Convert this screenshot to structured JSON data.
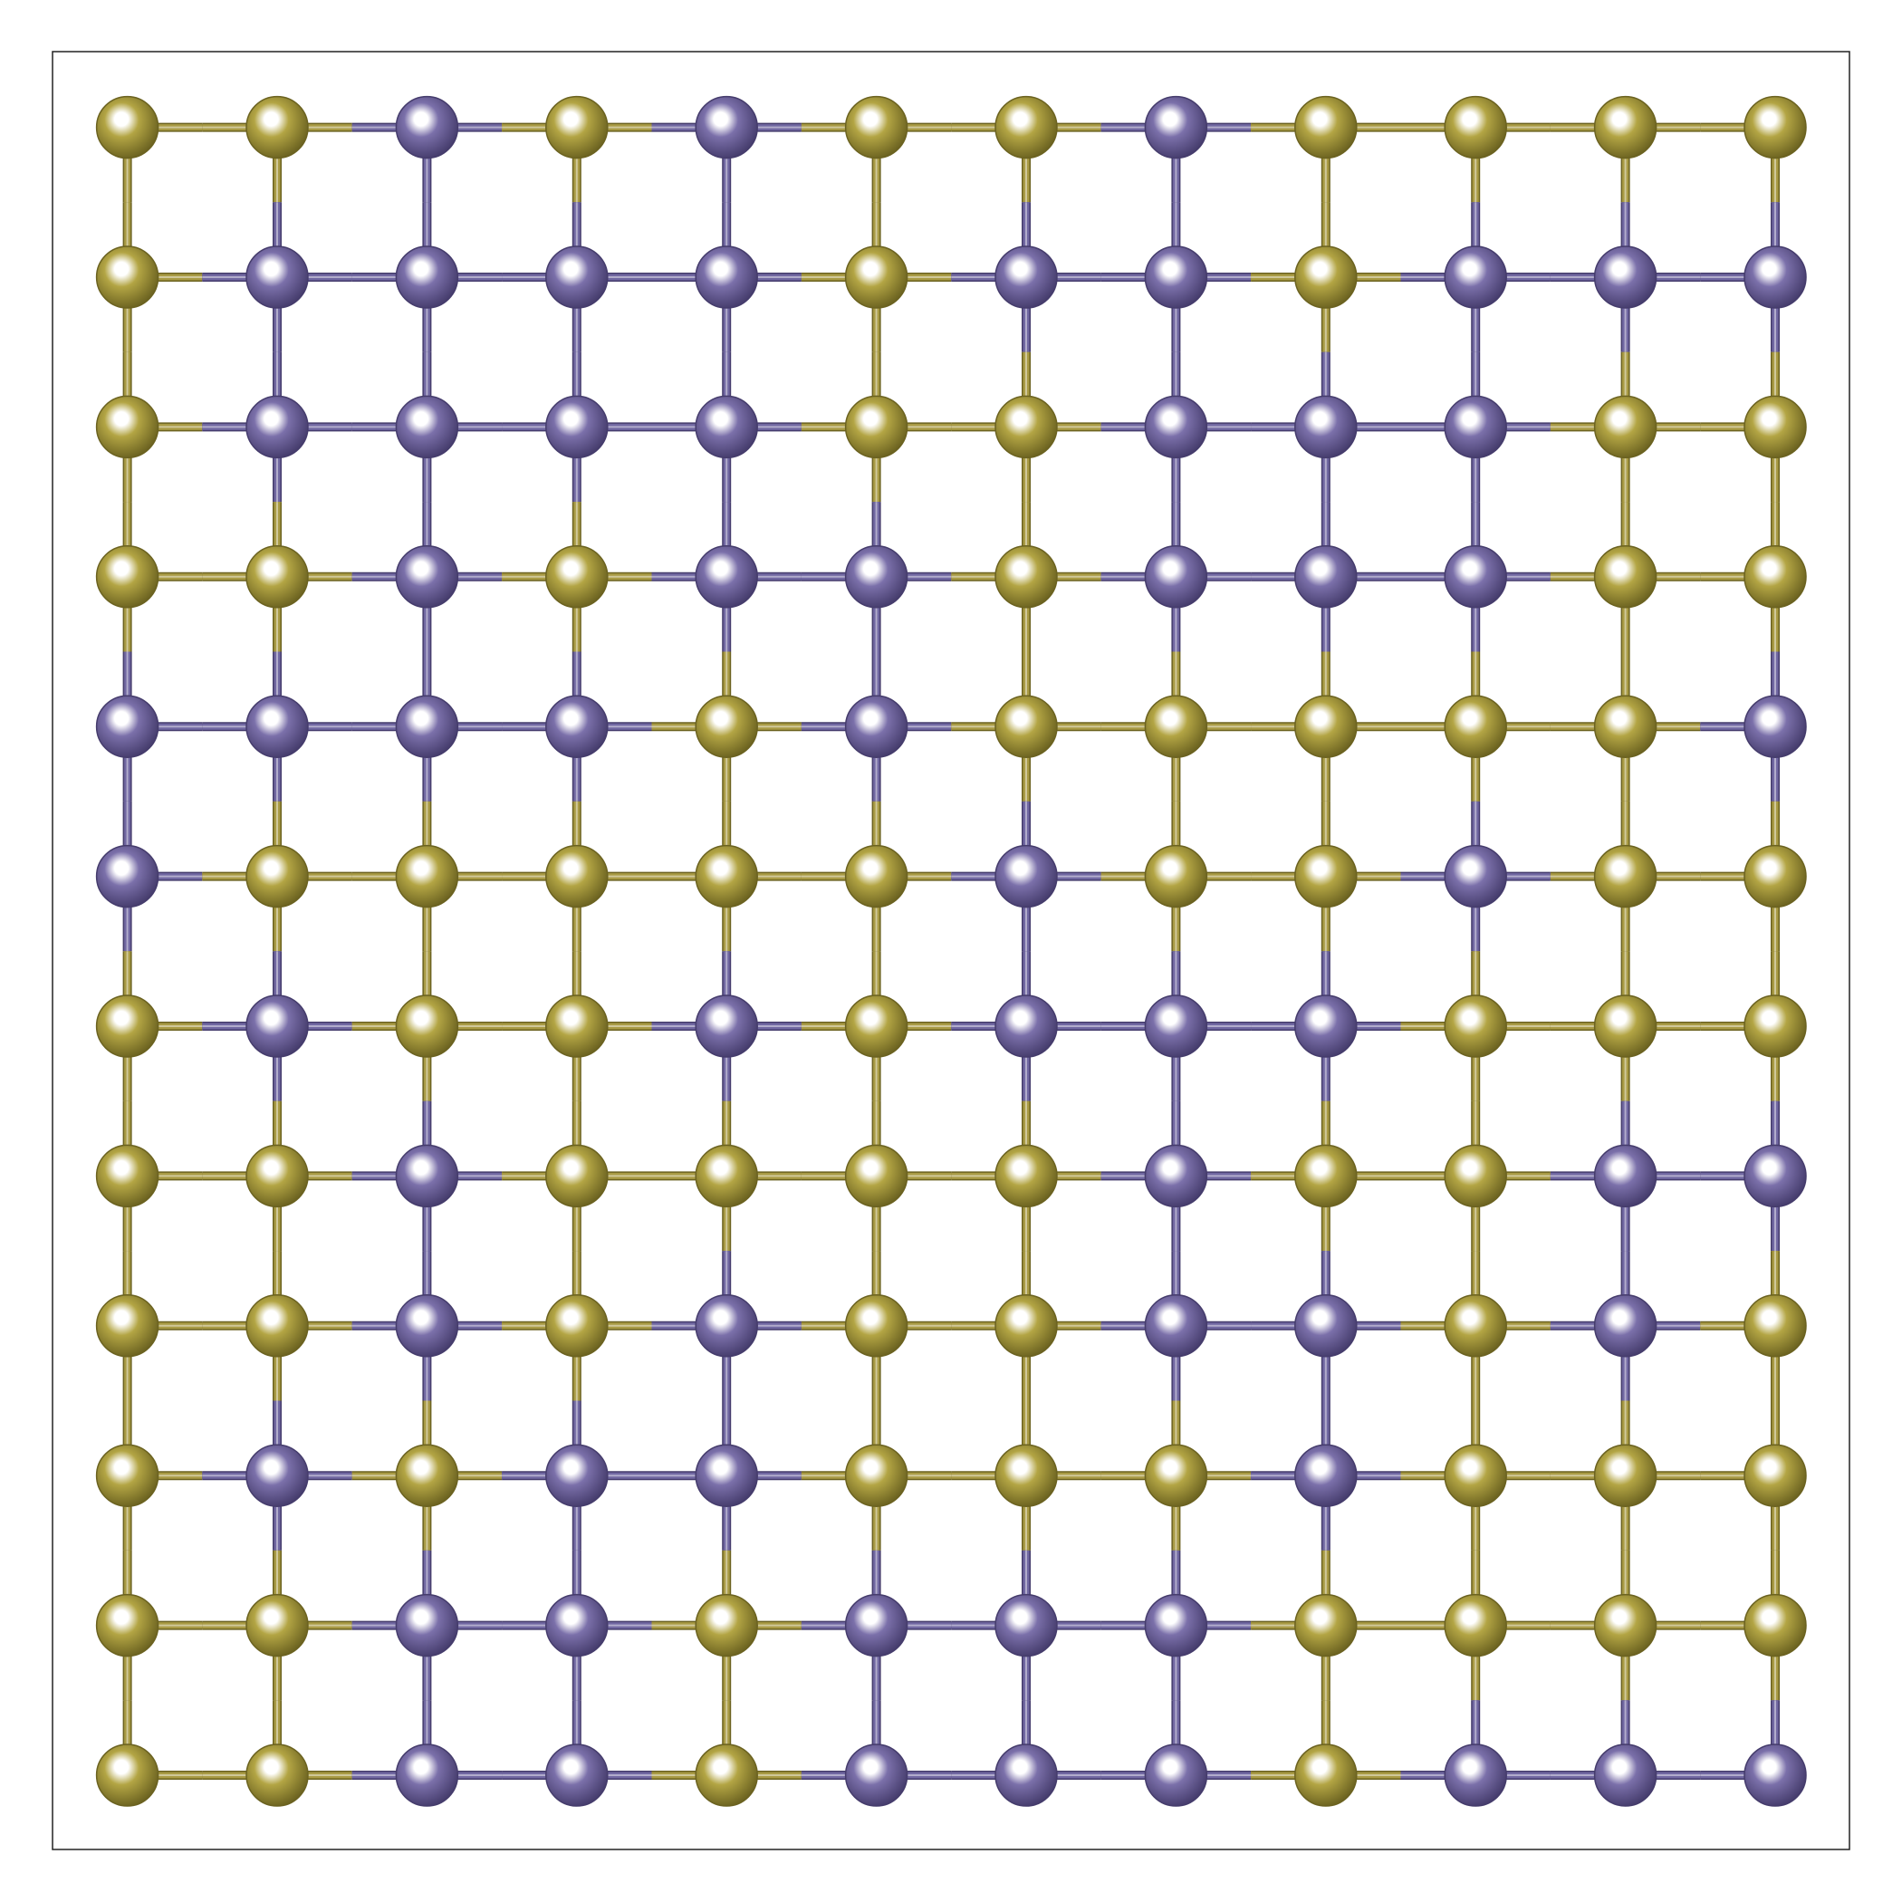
{
  "species": [
    {
      "color": "#b3a544",
      "edge": "#6b6220",
      "bond": "#a99b45"
    },
    {
      "color": "#7b70aa",
      "edge": "#453c6c",
      "bond": "#7168a2"
    }
  ],
  "grid": [
    [
      0,
      0,
      1,
      0,
      1,
      0,
      0,
      1,
      0,
      0,
      0,
      0
    ],
    [
      0,
      1,
      1,
      1,
      1,
      0,
      1,
      1,
      0,
      1,
      1,
      1
    ],
    [
      0,
      1,
      1,
      1,
      1,
      0,
      0,
      1,
      1,
      1,
      0,
      0
    ],
    [
      0,
      0,
      1,
      0,
      1,
      1,
      0,
      1,
      1,
      1,
      0,
      0
    ],
    [
      1,
      1,
      1,
      1,
      0,
      1,
      0,
      0,
      0,
      0,
      0,
      1
    ],
    [
      1,
      0,
      0,
      0,
      0,
      0,
      1,
      0,
      0,
      1,
      0,
      0
    ],
    [
      0,
      1,
      0,
      0,
      1,
      0,
      1,
      1,
      1,
      0,
      0,
      0
    ],
    [
      0,
      0,
      1,
      0,
      0,
      0,
      0,
      1,
      0,
      0,
      1,
      1
    ],
    [
      0,
      0,
      1,
      0,
      1,
      0,
      0,
      1,
      1,
      0,
      1,
      0
    ],
    [
      0,
      1,
      0,
      1,
      1,
      0,
      0,
      0,
      1,
      0,
      0,
      0
    ],
    [
      0,
      0,
      1,
      1,
      0,
      1,
      1,
      1,
      0,
      0,
      0,
      0
    ],
    [
      0,
      0,
      1,
      1,
      0,
      1,
      1,
      1,
      0,
      1,
      1,
      1
    ]
  ]
}
